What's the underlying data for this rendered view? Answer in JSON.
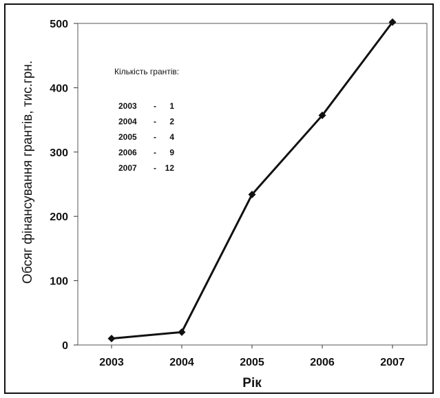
{
  "chart_data": {
    "type": "line",
    "x": [
      "2003",
      "2004",
      "2005",
      "2006",
      "2007"
    ],
    "series": [
      {
        "values": [
          10,
          20,
          234,
          357,
          502
        ]
      }
    ],
    "xlabel": "Рік",
    "ylabel": "Обсяг фінансування грантів, тис.грн.",
    "ylim": [
      0,
      500
    ],
    "yticks": [
      "0",
      "100",
      "200",
      "300",
      "400",
      "500"
    ],
    "grid": false,
    "colors": {
      "line": "#111111",
      "plot_border": "#555555"
    },
    "annotation": {
      "title": "Кількість грантів:",
      "rows": [
        {
          "year": "2003",
          "dash": "-",
          "count": "1"
        },
        {
          "year": "2004",
          "dash": "-",
          "count": "2"
        },
        {
          "year": "2005",
          "dash": "-",
          "count": "4"
        },
        {
          "year": "2006",
          "dash": "-",
          "count": "9"
        },
        {
          "year": "2007",
          "dash": "-",
          "count": "12"
        }
      ]
    }
  }
}
